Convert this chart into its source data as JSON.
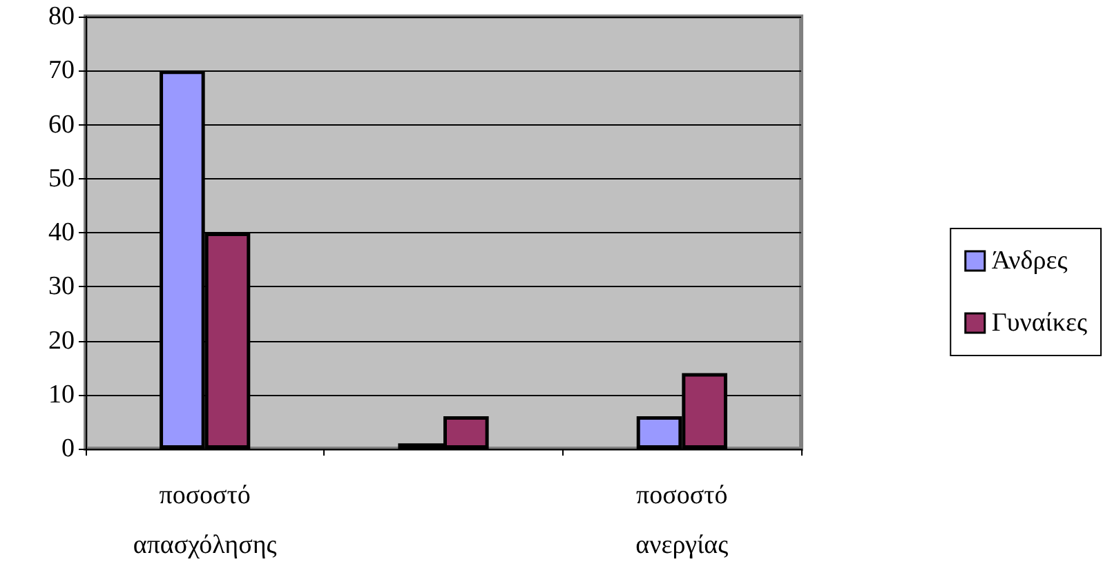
{
  "chart_data": {
    "type": "bar",
    "categories": [
      "ποσοστό απασχόλησης",
      null,
      "ποσοστό ανεργίας"
    ],
    "series": [
      {
        "name": "Άνδρες",
        "color": "#9999ff",
        "values": [
          70,
          1,
          6
        ]
      },
      {
        "name": "Γυναίκες",
        "color": "#993366",
        "values": [
          40,
          6,
          14
        ]
      }
    ],
    "ylim": [
      0,
      80
    ],
    "yticks": [
      0,
      10,
      20,
      30,
      40,
      50,
      60,
      70,
      80
    ],
    "grid": "y",
    "legend": "right"
  }
}
